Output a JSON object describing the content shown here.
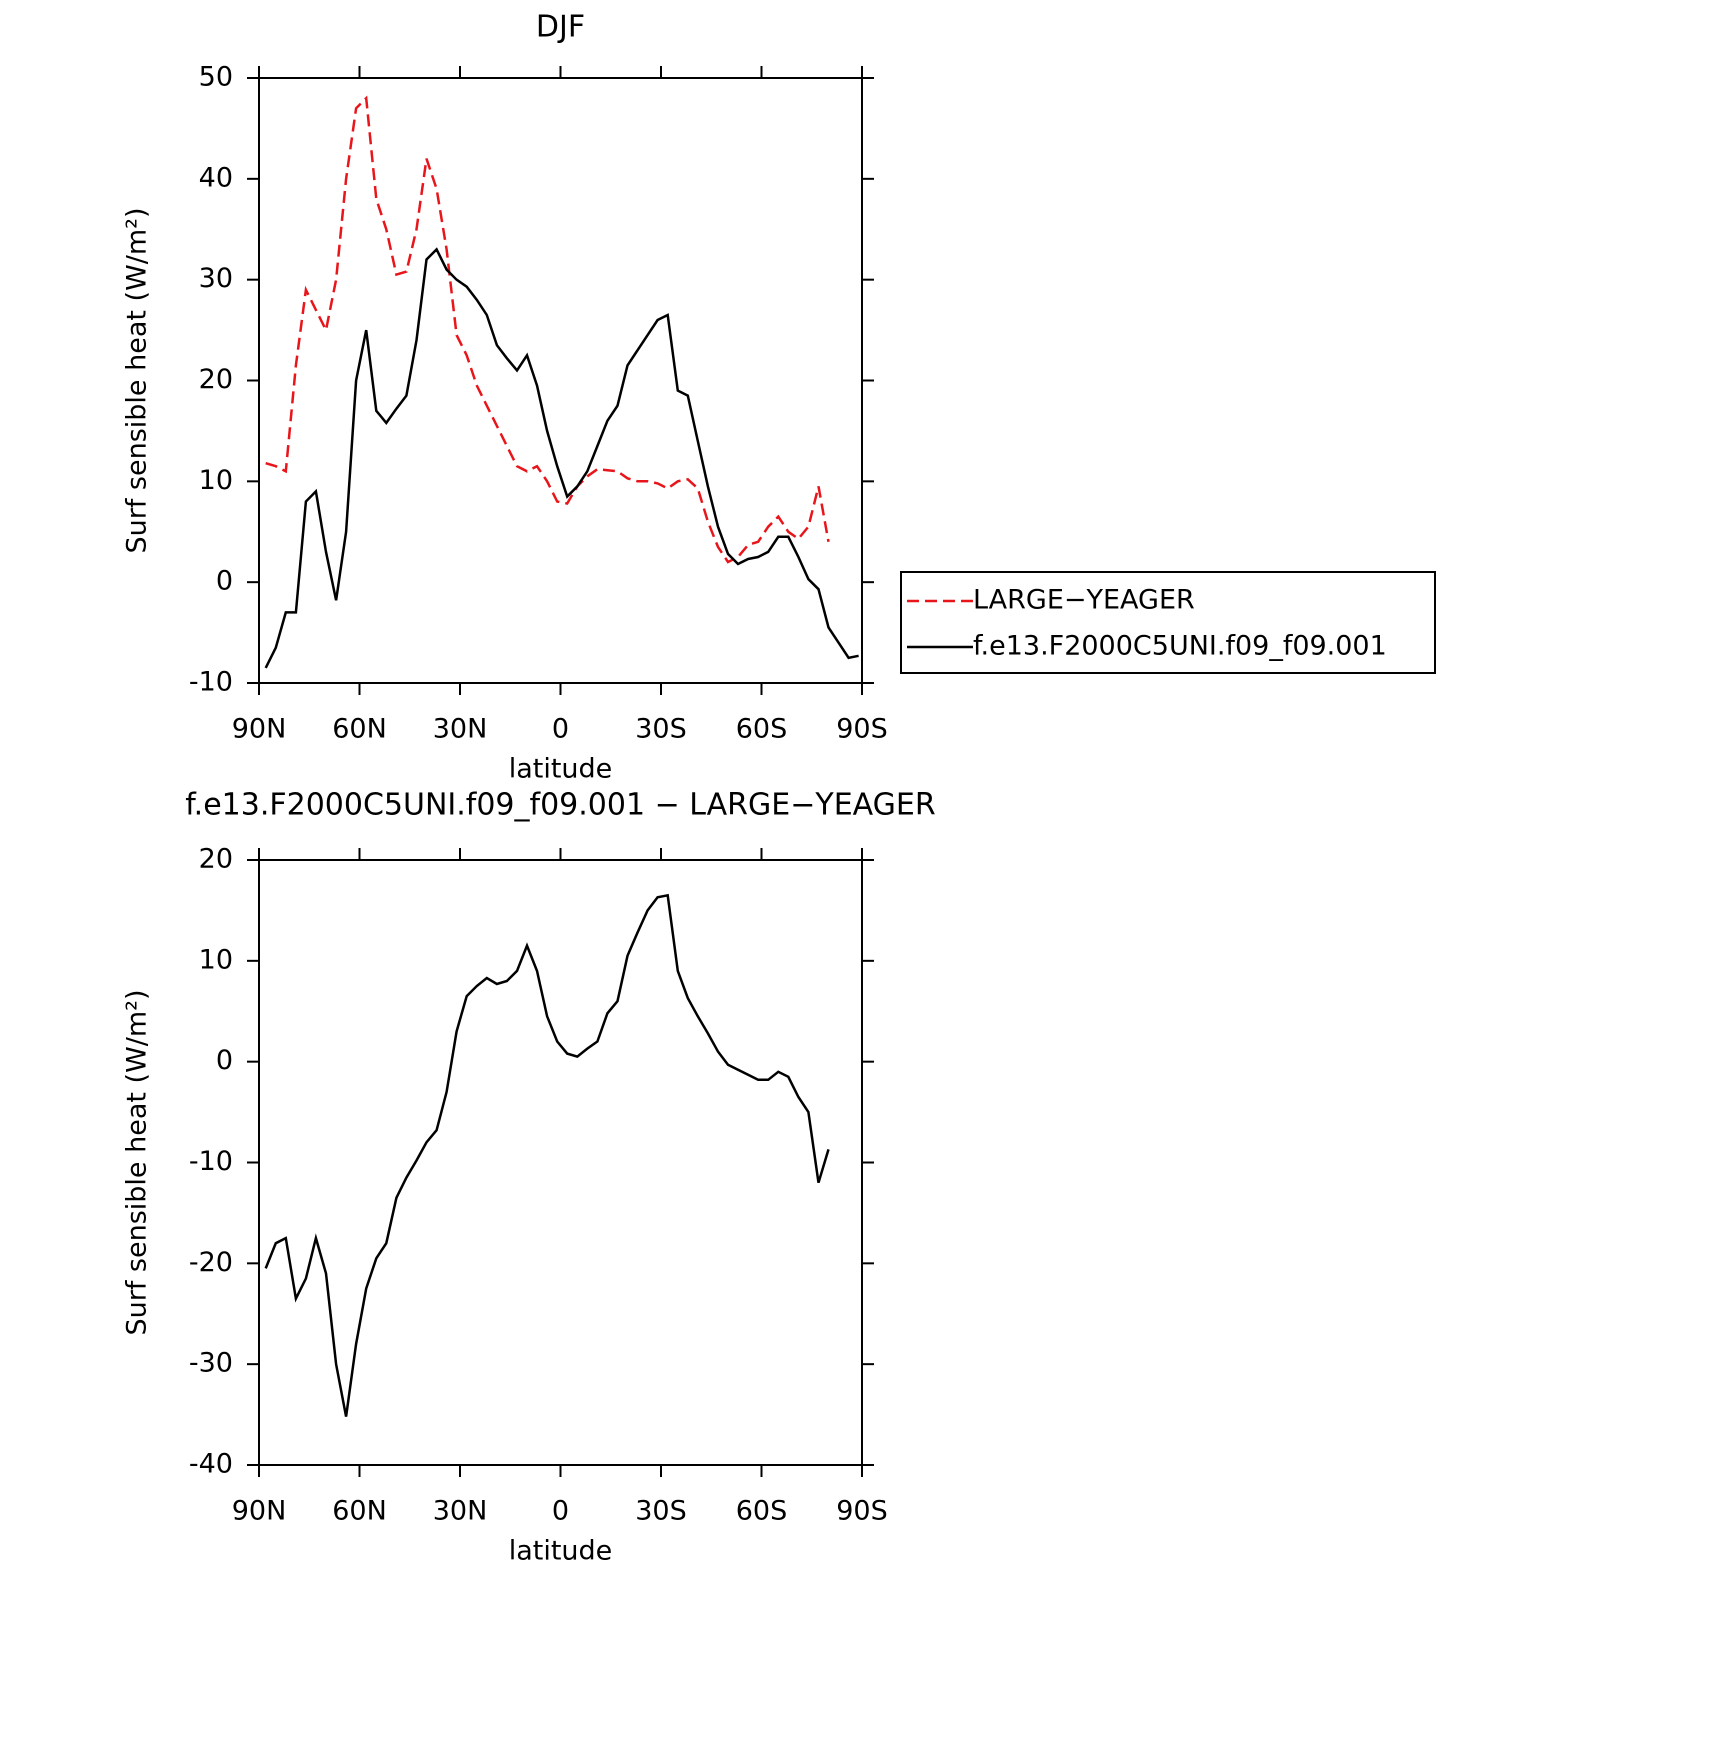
{
  "chart_data": [
    {
      "type": "line",
      "title": "DJF",
      "xlabel": "latitude",
      "ylabel": "Surf sensible heat (W/m²)",
      "x": [
        88,
        85,
        82,
        79,
        76,
        73,
        70,
        67,
        64,
        61,
        58,
        55,
        52,
        49,
        46,
        43,
        40,
        37,
        34,
        31,
        28,
        25,
        22,
        19,
        16,
        13,
        10,
        7,
        4,
        1,
        -2,
        -5,
        -8,
        -11,
        -14,
        -17,
        -20,
        -23,
        -26,
        -29,
        -32,
        -35,
        -38,
        -41,
        -44,
        -47,
        -50,
        -53,
        -56,
        -59,
        -62,
        -65,
        -68,
        -71,
        -74,
        -77,
        -80,
        -83,
        -86,
        -89
      ],
      "xlim": [
        90,
        -90
      ],
      "xticks": [
        {
          "value": 90,
          "label": "90N"
        },
        {
          "value": 60,
          "label": "60N"
        },
        {
          "value": 30,
          "label": "30N"
        },
        0,
        {
          "value": -30,
          "label": "30S"
        },
        {
          "value": -60,
          "label": "60S"
        },
        {
          "value": -90,
          "label": "90S"
        }
      ],
      "ylim": [
        -10,
        50
      ],
      "yticks": [
        -10,
        0,
        10,
        20,
        30,
        40,
        50
      ],
      "legend": "right",
      "series": [
        {
          "name": "LARGE−YEAGER",
          "color": "#e8161b",
          "line_style": "dashed",
          "values": [
            11.8,
            11.5,
            11,
            21.5,
            29,
            27,
            25,
            30,
            40,
            47,
            48,
            38,
            35,
            30.5,
            30.8,
            35,
            42,
            39,
            33,
            24.5,
            22.5,
            19.5,
            17.5,
            15.5,
            13.5,
            11.5,
            11,
            11.5,
            10,
            8,
            7.8,
            9.5,
            10.5,
            11.2,
            11.1,
            11,
            10.3,
            10,
            10,
            9.8,
            9.3,
            10,
            10.2,
            9.3,
            6,
            3.5,
            2,
            2.5,
            3.7,
            4,
            5.5,
            6.5,
            5,
            4.3,
            5.5,
            9.5,
            4,
            null,
            null,
            null
          ]
        },
        {
          "name": "f.e13.F2000C5UNI.f09_f09.001",
          "color": "#000000",
          "line_style": "solid",
          "values": [
            -8.5,
            -6.5,
            -3,
            -3,
            8,
            9,
            3,
            -1.8,
            5,
            20,
            25,
            17,
            15.8,
            17.2,
            18.5,
            24,
            32,
            33,
            31,
            30,
            29.3,
            28,
            26.5,
            23.5,
            22.2,
            21,
            22.5,
            19.5,
            15,
            11.5,
            8.5,
            9.5,
            11,
            13.5,
            16,
            17.5,
            21.5,
            23,
            24.5,
            26,
            26.5,
            19,
            18.5,
            14,
            9.5,
            5.5,
            2.8,
            1.8,
            2.3,
            2.5,
            3,
            4.5,
            4.5,
            2.5,
            0.3,
            -0.7,
            -4.5,
            -6,
            -7.5,
            -7.3
          ]
        }
      ]
    },
    {
      "type": "line",
      "title": "f.e13.F2000C5UNI.f09_f09.001 − LARGE−YEAGER",
      "xlabel": "latitude",
      "ylabel": "Surf sensible heat (W/m²)",
      "x": [
        88,
        85,
        82,
        79,
        76,
        73,
        70,
        67,
        64,
        61,
        58,
        55,
        52,
        49,
        46,
        43,
        40,
        37,
        34,
        31,
        28,
        25,
        22,
        19,
        16,
        13,
        10,
        7,
        4,
        1,
        -2,
        -5,
        -8,
        -11,
        -14,
        -17,
        -20,
        -23,
        -26,
        -29,
        -32,
        -35,
        -38,
        -41,
        -44,
        -47,
        -50,
        -53,
        -56,
        -59,
        -62,
        -65,
        -68,
        -71,
        -74,
        -77,
        -80,
        -83,
        -86,
        -89
      ],
      "xlim": [
        90,
        -90
      ],
      "xticks": [
        {
          "value": 90,
          "label": "90N"
        },
        {
          "value": 60,
          "label": "60N"
        },
        {
          "value": 30,
          "label": "30N"
        },
        0,
        {
          "value": -30,
          "label": "30S"
        },
        {
          "value": -60,
          "label": "60S"
        },
        {
          "value": -90,
          "label": "90S"
        }
      ],
      "ylim": [
        -40,
        20
      ],
      "yticks": [
        -40,
        -30,
        -20,
        -10,
        0,
        10,
        20
      ],
      "color": "#000000",
      "values": [
        -20.5,
        -18,
        -17.5,
        -23.5,
        -21.5,
        -17.5,
        -21,
        -30,
        -35.2,
        -28,
        -22.5,
        -19.5,
        -18,
        -13.5,
        -11.5,
        -9.8,
        -8,
        -6.8,
        -3,
        3,
        6.5,
        7.5,
        8.3,
        7.7,
        8,
        9,
        11.5,
        9,
        4.5,
        2,
        0.8,
        0.5,
        1.3,
        2,
        4.8,
        6,
        10.5,
        12.8,
        15,
        16.3,
        16.5,
        9,
        6.3,
        4.5,
        2.8,
        1,
        -0.3,
        -0.8,
        -1.3,
        -1.8,
        -1.8,
        -1,
        -1.5,
        -3.5,
        -5,
        -12,
        -8.7,
        null,
        null,
        null
      ]
    }
  ]
}
